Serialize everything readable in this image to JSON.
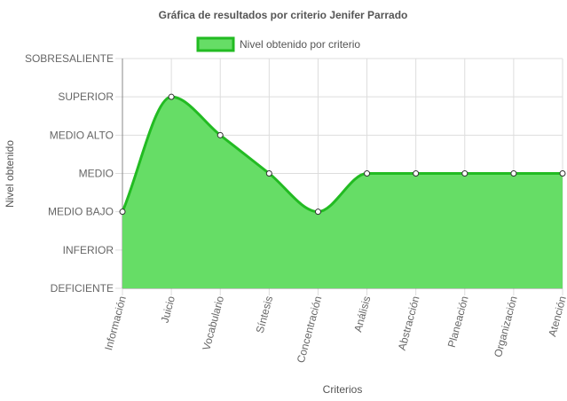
{
  "chart_data": {
    "type": "area",
    "title": "Gráfica de resultados por criterio Jenifer Parrado",
    "xlabel": "Criterios",
    "ylabel": "Nivel obtenido",
    "legend": {
      "position": "top",
      "label": "Nivel obtenido por criterio"
    },
    "y_levels": [
      "DEFICIENTE",
      "INFERIOR",
      "MEDIO BAJO",
      "MEDIO",
      "MEDIO ALTO",
      "SUPERIOR",
      "SOBRESALIENTE"
    ],
    "ylim": [
      0,
      6
    ],
    "categories": [
      "Información",
      "Juicio",
      "Vocabulario",
      "Síntesis",
      "Concentración",
      "Análisis",
      "Abstracción",
      "Planeación",
      "Organización",
      "Atención"
    ],
    "series": [
      {
        "name": "Nivel obtenido por criterio",
        "values": [
          2,
          5,
          4,
          3,
          2,
          3,
          3,
          3,
          3,
          3
        ],
        "value_labels": [
          "MEDIO BAJO",
          "SUPERIOR",
          "MEDIO ALTO",
          "MEDIO",
          "MEDIO BAJO",
          "MEDIO",
          "MEDIO",
          "MEDIO",
          "MEDIO",
          "MEDIO"
        ]
      }
    ],
    "grid": true,
    "colors": {
      "fill": "#66dd66",
      "line": "#22bb22",
      "point_fill": "#ffffff",
      "point_stroke": "#333333",
      "grid": "#dddddd",
      "axis": "#888888"
    }
  }
}
